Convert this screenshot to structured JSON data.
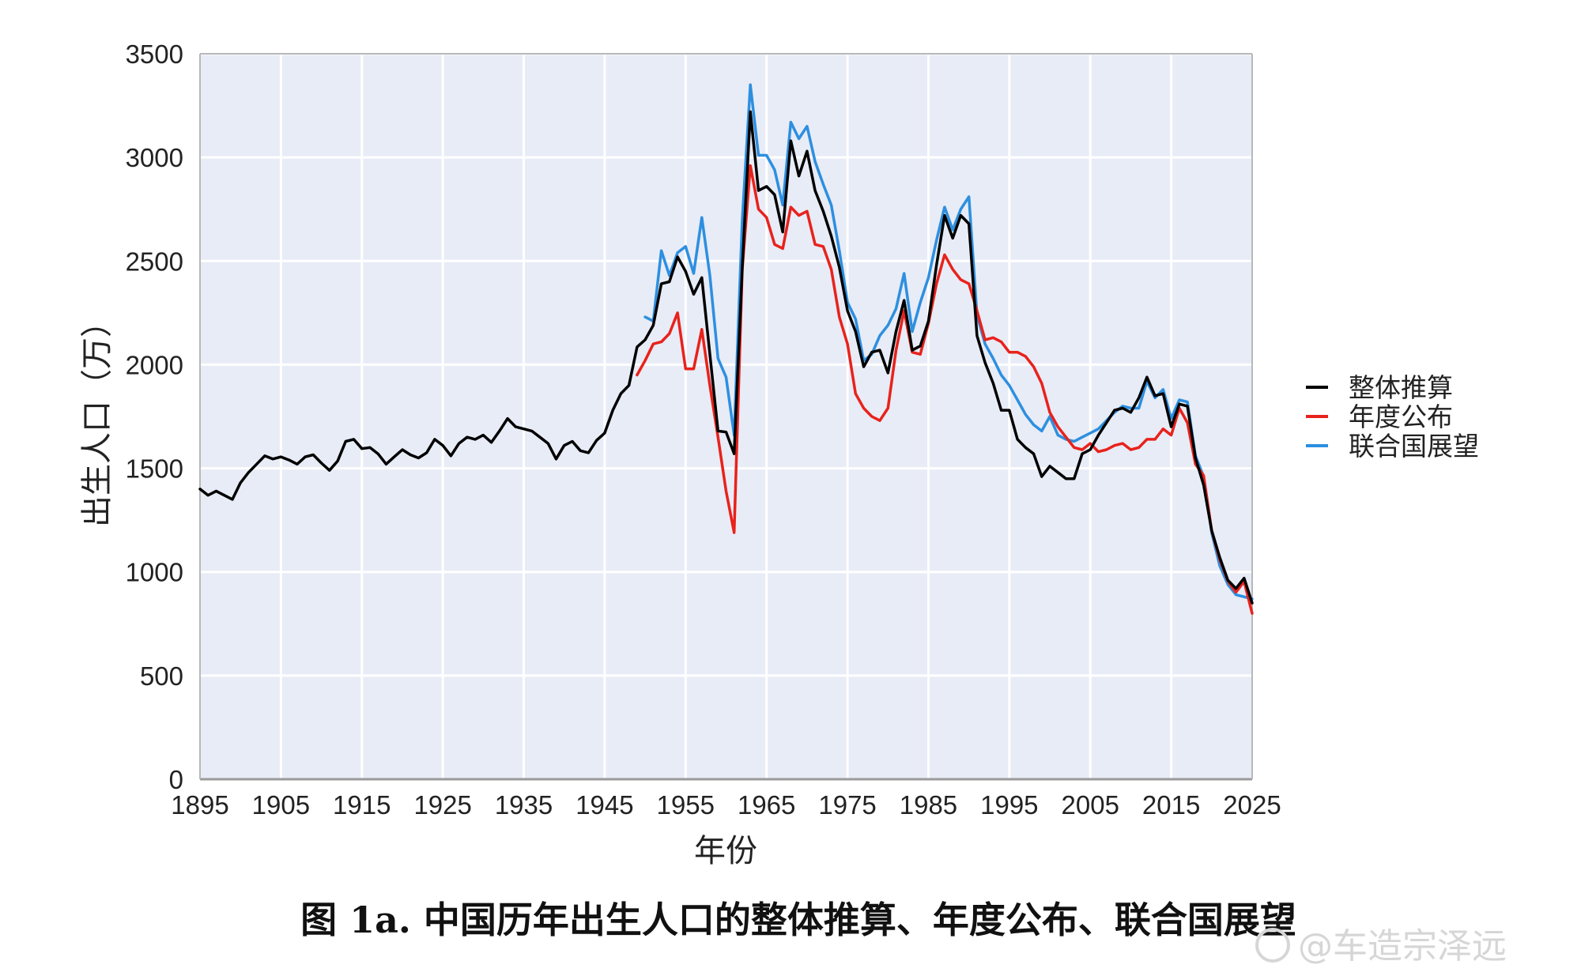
{
  "chart_data": {
    "type": "line",
    "xlabel": "年份",
    "ylabel": "出生人口（万）",
    "xlim": [
      1895,
      2025
    ],
    "ylim": [
      0,
      3500
    ],
    "x_ticks": [
      1895,
      1905,
      1915,
      1925,
      1935,
      1945,
      1955,
      1965,
      1975,
      1985,
      1995,
      2005,
      2015,
      2025
    ],
    "y_ticks": [
      0,
      500,
      1000,
      1500,
      2000,
      2500,
      3000,
      3500
    ],
    "grid": true,
    "legend_position": "right",
    "series": [
      {
        "name": "整体推算",
        "color": "#000000",
        "points": [
          [
            1895,
            1400
          ],
          [
            1896,
            1370
          ],
          [
            1897,
            1390
          ],
          [
            1898,
            1370
          ],
          [
            1899,
            1350
          ],
          [
            1900,
            1430
          ],
          [
            1901,
            1480
          ],
          [
            1902,
            1520
          ],
          [
            1903,
            1560
          ],
          [
            1904,
            1545
          ],
          [
            1905,
            1555
          ],
          [
            1906,
            1540
          ],
          [
            1907,
            1520
          ],
          [
            1908,
            1555
          ],
          [
            1909,
            1565
          ],
          [
            1910,
            1525
          ],
          [
            1911,
            1490
          ],
          [
            1912,
            1535
          ],
          [
            1913,
            1630
          ],
          [
            1914,
            1640
          ],
          [
            1915,
            1595
          ],
          [
            1916,
            1600
          ],
          [
            1917,
            1570
          ],
          [
            1918,
            1520
          ],
          [
            1919,
            1555
          ],
          [
            1920,
            1590
          ],
          [
            1921,
            1565
          ],
          [
            1922,
            1550
          ],
          [
            1923,
            1575
          ],
          [
            1924,
            1640
          ],
          [
            1925,
            1610
          ],
          [
            1926,
            1560
          ],
          [
            1927,
            1620
          ],
          [
            1928,
            1650
          ],
          [
            1929,
            1640
          ],
          [
            1930,
            1660
          ],
          [
            1931,
            1625
          ],
          [
            1932,
            1680
          ],
          [
            1933,
            1740
          ],
          [
            1934,
            1700
          ],
          [
            1935,
            1690
          ],
          [
            1936,
            1680
          ],
          [
            1937,
            1650
          ],
          [
            1938,
            1620
          ],
          [
            1939,
            1545
          ],
          [
            1940,
            1610
          ],
          [
            1941,
            1630
          ],
          [
            1942,
            1585
          ],
          [
            1943,
            1575
          ],
          [
            1944,
            1635
          ],
          [
            1945,
            1670
          ],
          [
            1946,
            1780
          ],
          [
            1947,
            1860
          ],
          [
            1948,
            1900
          ],
          [
            1949,
            2085
          ],
          [
            1950,
            2120
          ],
          [
            1951,
            2190
          ],
          [
            1952,
            2390
          ],
          [
            1953,
            2400
          ],
          [
            1954,
            2520
          ],
          [
            1955,
            2450
          ],
          [
            1956,
            2340
          ],
          [
            1957,
            2420
          ],
          [
            1958,
            2050
          ],
          [
            1959,
            1680
          ],
          [
            1960,
            1675
          ],
          [
            1961,
            1570
          ],
          [
            1962,
            2470
          ],
          [
            1963,
            3220
          ],
          [
            1964,
            2840
          ],
          [
            1965,
            2860
          ],
          [
            1966,
            2820
          ],
          [
            1967,
            2640
          ],
          [
            1968,
            3080
          ],
          [
            1969,
            2910
          ],
          [
            1970,
            3030
          ],
          [
            1971,
            2840
          ],
          [
            1972,
            2740
          ],
          [
            1973,
            2620
          ],
          [
            1974,
            2470
          ],
          [
            1975,
            2260
          ],
          [
            1976,
            2160
          ],
          [
            1977,
            1990
          ],
          [
            1978,
            2060
          ],
          [
            1979,
            2070
          ],
          [
            1980,
            1960
          ],
          [
            1981,
            2160
          ],
          [
            1982,
            2310
          ],
          [
            1983,
            2070
          ],
          [
            1984,
            2090
          ],
          [
            1985,
            2210
          ],
          [
            1986,
            2480
          ],
          [
            1987,
            2720
          ],
          [
            1988,
            2610
          ],
          [
            1989,
            2720
          ],
          [
            1990,
            2680
          ],
          [
            1991,
            2140
          ],
          [
            1992,
            2010
          ],
          [
            1993,
            1910
          ],
          [
            1994,
            1780
          ],
          [
            1995,
            1780
          ],
          [
            1996,
            1640
          ],
          [
            1997,
            1600
          ],
          [
            1998,
            1570
          ],
          [
            1999,
            1460
          ],
          [
            2000,
            1510
          ],
          [
            2001,
            1480
          ],
          [
            2002,
            1450
          ],
          [
            2003,
            1450
          ],
          [
            2004,
            1570
          ],
          [
            2005,
            1590
          ],
          [
            2006,
            1660
          ],
          [
            2007,
            1720
          ],
          [
            2008,
            1780
          ],
          [
            2009,
            1790
          ],
          [
            2010,
            1770
          ],
          [
            2011,
            1840
          ],
          [
            2012,
            1940
          ],
          [
            2013,
            1850
          ],
          [
            2014,
            1860
          ],
          [
            2015,
            1700
          ],
          [
            2016,
            1810
          ],
          [
            2017,
            1800
          ],
          [
            2018,
            1550
          ],
          [
            2019,
            1420
          ],
          [
            2020,
            1200
          ],
          [
            2021,
            1070
          ],
          [
            2022,
            960
          ],
          [
            2023,
            920
          ],
          [
            2024,
            970
          ],
          [
            2025,
            850
          ]
        ]
      },
      {
        "name": "年度公布",
        "color": "#e8221c",
        "points": [
          [
            1949,
            1950
          ],
          [
            1950,
            2020
          ],
          [
            1951,
            2100
          ],
          [
            1952,
            2110
          ],
          [
            1953,
            2150
          ],
          [
            1954,
            2250
          ],
          [
            1955,
            1980
          ],
          [
            1956,
            1980
          ],
          [
            1957,
            2170
          ],
          [
            1958,
            1900
          ],
          [
            1959,
            1650
          ],
          [
            1960,
            1390
          ],
          [
            1961,
            1190
          ],
          [
            1962,
            2460
          ],
          [
            1963,
            2960
          ],
          [
            1964,
            2750
          ],
          [
            1965,
            2710
          ],
          [
            1966,
            2580
          ],
          [
            1967,
            2560
          ],
          [
            1968,
            2760
          ],
          [
            1969,
            2720
          ],
          [
            1970,
            2740
          ],
          [
            1971,
            2580
          ],
          [
            1972,
            2570
          ],
          [
            1973,
            2460
          ],
          [
            1974,
            2230
          ],
          [
            1975,
            2100
          ],
          [
            1976,
            1860
          ],
          [
            1977,
            1790
          ],
          [
            1978,
            1750
          ],
          [
            1979,
            1730
          ],
          [
            1980,
            1790
          ],
          [
            1981,
            2070
          ],
          [
            1982,
            2260
          ],
          [
            1983,
            2060
          ],
          [
            1984,
            2050
          ],
          [
            1985,
            2200
          ],
          [
            1986,
            2390
          ],
          [
            1987,
            2530
          ],
          [
            1988,
            2460
          ],
          [
            1989,
            2410
          ],
          [
            1990,
            2390
          ],
          [
            1991,
            2260
          ],
          [
            1992,
            2120
          ],
          [
            1993,
            2130
          ],
          [
            1994,
            2110
          ],
          [
            1995,
            2060
          ],
          [
            1996,
            2060
          ],
          [
            1997,
            2040
          ],
          [
            1998,
            1990
          ],
          [
            1999,
            1910
          ],
          [
            2000,
            1770
          ],
          [
            2001,
            1700
          ],
          [
            2002,
            1650
          ],
          [
            2003,
            1600
          ],
          [
            2004,
            1590
          ],
          [
            2005,
            1620
          ],
          [
            2006,
            1580
          ],
          [
            2007,
            1590
          ],
          [
            2008,
            1610
          ],
          [
            2009,
            1620
          ],
          [
            2010,
            1590
          ],
          [
            2011,
            1600
          ],
          [
            2012,
            1640
          ],
          [
            2013,
            1640
          ],
          [
            2014,
            1690
          ],
          [
            2015,
            1660
          ],
          [
            2016,
            1790
          ],
          [
            2017,
            1720
          ],
          [
            2018,
            1520
          ],
          [
            2019,
            1465
          ],
          [
            2020,
            1200
          ],
          [
            2021,
            1060
          ],
          [
            2022,
            956
          ],
          [
            2023,
            902
          ],
          [
            2024,
            954
          ],
          [
            2025,
            800
          ]
        ]
      },
      {
        "name": "联合国展望",
        "color": "#2d8fe0",
        "points": [
          [
            1950,
            2230
          ],
          [
            1951,
            2210
          ],
          [
            1952,
            2550
          ],
          [
            1953,
            2430
          ],
          [
            1954,
            2540
          ],
          [
            1955,
            2570
          ],
          [
            1956,
            2440
          ],
          [
            1957,
            2710
          ],
          [
            1958,
            2430
          ],
          [
            1959,
            2030
          ],
          [
            1960,
            1940
          ],
          [
            1961,
            1660
          ],
          [
            1962,
            2700
          ],
          [
            1963,
            3350
          ],
          [
            1964,
            3010
          ],
          [
            1965,
            3010
          ],
          [
            1966,
            2940
          ],
          [
            1967,
            2770
          ],
          [
            1968,
            3170
          ],
          [
            1969,
            3090
          ],
          [
            1970,
            3150
          ],
          [
            1971,
            2980
          ],
          [
            1972,
            2870
          ],
          [
            1973,
            2770
          ],
          [
            1974,
            2550
          ],
          [
            1975,
            2300
          ],
          [
            1976,
            2220
          ],
          [
            1977,
            2020
          ],
          [
            1978,
            2050
          ],
          [
            1979,
            2140
          ],
          [
            1980,
            2190
          ],
          [
            1981,
            2270
          ],
          [
            1982,
            2440
          ],
          [
            1983,
            2160
          ],
          [
            1984,
            2300
          ],
          [
            1985,
            2420
          ],
          [
            1986,
            2600
          ],
          [
            1987,
            2760
          ],
          [
            1988,
            2650
          ],
          [
            1989,
            2750
          ],
          [
            1990,
            2810
          ],
          [
            1991,
            2240
          ],
          [
            1992,
            2100
          ],
          [
            1993,
            2030
          ],
          [
            1994,
            1950
          ],
          [
            1995,
            1900
          ],
          [
            1996,
            1830
          ],
          [
            1997,
            1760
          ],
          [
            1998,
            1710
          ],
          [
            1999,
            1680
          ],
          [
            2000,
            1750
          ],
          [
            2001,
            1660
          ],
          [
            2002,
            1640
          ],
          [
            2003,
            1630
          ],
          [
            2004,
            1650
          ],
          [
            2005,
            1670
          ],
          [
            2006,
            1690
          ],
          [
            2007,
            1730
          ],
          [
            2008,
            1770
          ],
          [
            2009,
            1800
          ],
          [
            2010,
            1790
          ],
          [
            2011,
            1790
          ],
          [
            2012,
            1920
          ],
          [
            2013,
            1840
          ],
          [
            2014,
            1880
          ],
          [
            2015,
            1740
          ],
          [
            2016,
            1830
          ],
          [
            2017,
            1820
          ],
          [
            2018,
            1560
          ],
          [
            2019,
            1460
          ],
          [
            2020,
            1190
          ],
          [
            2021,
            1030
          ],
          [
            2022,
            940
          ],
          [
            2023,
            890
          ],
          [
            2024,
            880
          ],
          [
            2025,
            870
          ]
        ]
      }
    ]
  },
  "caption": "图 1a.  中国历年出生人口的整体推算、年度公布、联合国展望",
  "watermark": "@车造宗泽远",
  "colors": {
    "plot_background": "#e8ecf6",
    "grid": "#ffffff",
    "axis": "#9a9a9a"
  }
}
